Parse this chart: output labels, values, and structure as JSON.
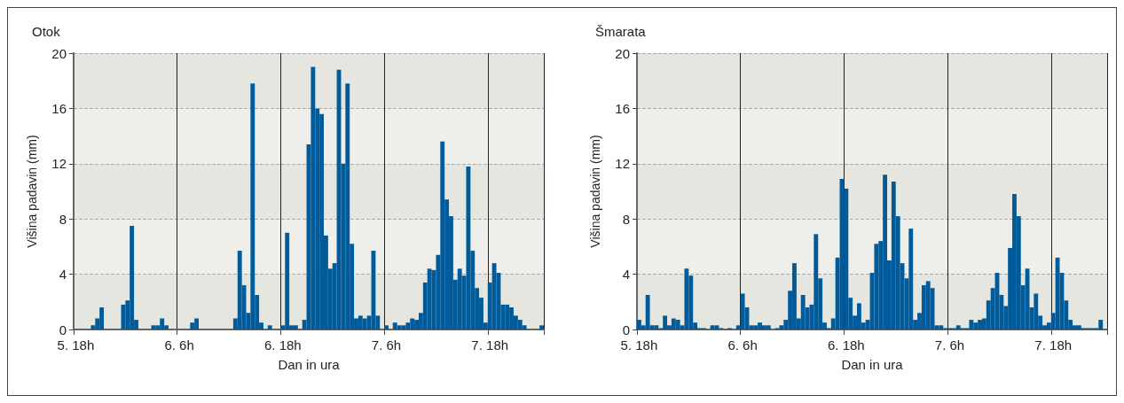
{
  "chart_data": [
    {
      "type": "bar",
      "title": "Otok",
      "xlabel": "Dan in ura",
      "ylabel": "Višina padavin (mm)",
      "color": "#005b9a",
      "ylim": [
        0,
        20
      ],
      "yticks": [
        0,
        4,
        8,
        12,
        16,
        20
      ],
      "grid": true,
      "categories": [
        "5. 18h",
        null,
        null,
        null,
        null,
        null,
        null,
        null,
        null,
        null,
        null,
        null,
        null,
        null,
        null,
        null,
        null,
        null,
        null,
        null,
        null,
        null,
        null,
        null,
        "6. 6h",
        null,
        null,
        null,
        null,
        null,
        null,
        null,
        null,
        null,
        null,
        null,
        null,
        null,
        null,
        null,
        null,
        null,
        null,
        null,
        null,
        null,
        null,
        null,
        "6. 18h",
        null,
        null,
        null,
        null,
        null,
        null,
        null,
        null,
        null,
        null,
        null,
        null,
        null,
        null,
        null,
        null,
        null,
        null,
        null,
        null,
        null,
        null,
        null,
        "7. 6h",
        null,
        null,
        null,
        null,
        null,
        null,
        null,
        null,
        null,
        null,
        null,
        null,
        null,
        null,
        null,
        null,
        null,
        null,
        null,
        null,
        null,
        null,
        null,
        "7. 18h",
        null,
        null,
        null,
        null,
        null,
        null,
        null,
        null,
        null,
        null,
        null,
        null
      ],
      "values": [
        0,
        0,
        0,
        0,
        0.3,
        0.8,
        1.6,
        0,
        0,
        0,
        0,
        1.8,
        2.1,
        7.5,
        0.7,
        0,
        0,
        0,
        0.3,
        0.3,
        0.8,
        0.3,
        0,
        0,
        0,
        0,
        0,
        0.5,
        0.8,
        0,
        0,
        0,
        0,
        0,
        0,
        0,
        0,
        0.8,
        5.7,
        3.2,
        1.2,
        17.8,
        2.5,
        0.5,
        0,
        0.3,
        0,
        0,
        0.3,
        7,
        0.3,
        0.3,
        0,
        0.7,
        13.4,
        19,
        16,
        15.6,
        6.8,
        4.4,
        4.8,
        18.8,
        12,
        17.8,
        6.2,
        0.8,
        1,
        0.8,
        1,
        5.7,
        1,
        0,
        0.3,
        0,
        0.5,
        0.3,
        0.3,
        0.5,
        0.8,
        0.7,
        1.2,
        3.4,
        4.4,
        4.3,
        5.4,
        13.6,
        9.4,
        8.2,
        3.6,
        4.4,
        3.9,
        11.8,
        5.7,
        3,
        2.3,
        0.5,
        3.4,
        4.8,
        4.1,
        1.8,
        1.8,
        1.6,
        1,
        0.7,
        0.3,
        0,
        0,
        0,
        0.3
      ]
    },
    {
      "type": "bar",
      "title": "Šmarata",
      "xlabel": "Dan in ura",
      "ylabel": "Višina padavin (mm)",
      "color": "#005b9a",
      "ylim": [
        0,
        20
      ],
      "yticks": [
        0,
        4,
        8,
        12,
        16,
        20
      ],
      "grid": true,
      "categories": [
        "5. 18h",
        null,
        null,
        null,
        null,
        null,
        null,
        null,
        null,
        null,
        null,
        null,
        null,
        null,
        null,
        null,
        null,
        null,
        null,
        null,
        null,
        null,
        null,
        null,
        "6. 6h",
        null,
        null,
        null,
        null,
        null,
        null,
        null,
        null,
        null,
        null,
        null,
        null,
        null,
        null,
        null,
        null,
        null,
        null,
        null,
        null,
        null,
        null,
        null,
        "6. 18h",
        null,
        null,
        null,
        null,
        null,
        null,
        null,
        null,
        null,
        null,
        null,
        null,
        null,
        null,
        null,
        null,
        null,
        null,
        null,
        null,
        null,
        null,
        null,
        "7. 6h",
        null,
        null,
        null,
        null,
        null,
        null,
        null,
        null,
        null,
        null,
        null,
        null,
        null,
        null,
        null,
        null,
        null,
        null,
        null,
        null,
        null,
        null,
        null,
        "7. 18h",
        null,
        null,
        null,
        null,
        null,
        null,
        null,
        null,
        null,
        null,
        null,
        null
      ],
      "values": [
        0.7,
        0.3,
        2.5,
        0.3,
        0.3,
        0.1,
        1,
        0.3,
        0.8,
        0.7,
        0.3,
        4.4,
        3.9,
        0.5,
        0.1,
        0.1,
        0,
        0.3,
        0.3,
        0.1,
        0,
        0.1,
        0,
        0.3,
        2.6,
        1.6,
        0.3,
        0.3,
        0.5,
        0.3,
        0.3,
        0,
        0.1,
        0.3,
        0.7,
        2.8,
        4.8,
        0.8,
        2.5,
        1.6,
        1.8,
        6.9,
        3.7,
        0.5,
        0.1,
        0.8,
        5.2,
        10.9,
        10.2,
        2.3,
        1,
        1.9,
        0.5,
        0.7,
        4.1,
        6.2,
        6.4,
        11.2,
        5,
        10.7,
        8.2,
        4.8,
        3.7,
        7.3,
        0.7,
        1.2,
        3.2,
        3.5,
        3,
        0.3,
        0.3,
        0.1,
        0.1,
        0.1,
        0.3,
        0.1,
        0.1,
        0.7,
        0.5,
        0.7,
        0.8,
        2.1,
        3,
        4.1,
        2.5,
        1.7,
        5.9,
        9.8,
        8.2,
        3.2,
        4.4,
        1.6,
        2.6,
        1,
        0.3,
        0.5,
        1.2,
        5.2,
        4.1,
        2.1,
        0.7,
        0.3,
        0.3,
        0.1,
        0.1,
        0.1,
        0.1,
        0.7,
        0
      ]
    }
  ]
}
